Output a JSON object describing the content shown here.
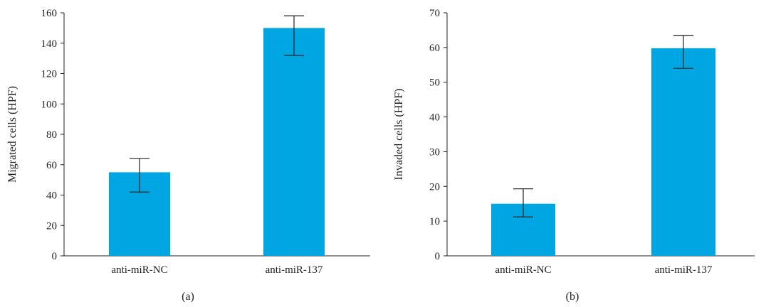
{
  "chart_data": [
    {
      "type": "bar",
      "panel_label": "(a)",
      "categories": [
        "anti-miR-NC",
        "anti-miR-137"
      ],
      "values": [
        55,
        150
      ],
      "error_low": [
        42,
        132
      ],
      "error_high": [
        64,
        158
      ],
      "ylabel": "Migrated cells (HPF)",
      "xlabel": "",
      "ylim": [
        0,
        160
      ],
      "yticks": [
        0,
        20,
        40,
        60,
        80,
        100,
        120,
        140,
        160
      ],
      "grid": false,
      "bar_color": "#00a6e2"
    },
    {
      "type": "bar",
      "panel_label": "(b)",
      "categories": [
        "anti-miR-NC",
        "anti-miR-137"
      ],
      "values": [
        15,
        59.8
      ],
      "error_low": [
        11.2,
        54
      ],
      "error_high": [
        19.3,
        63.5
      ],
      "ylabel": "Invaded cells (HPF)",
      "xlabel": "",
      "ylim": [
        0,
        70
      ],
      "yticks": [
        0,
        10,
        20,
        30,
        40,
        50,
        60,
        70
      ],
      "grid": false,
      "bar_color": "#00a6e2"
    }
  ]
}
